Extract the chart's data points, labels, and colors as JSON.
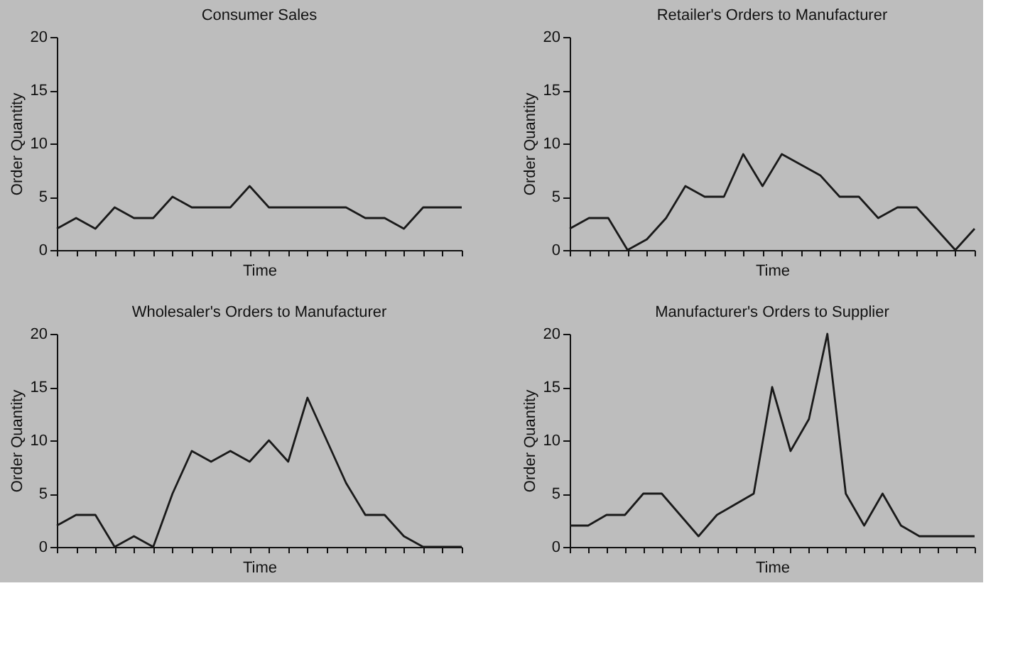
{
  "chart_data": [
    {
      "type": "line",
      "title": "Consumer Sales",
      "xlabel": "Time",
      "ylabel": "Order Quantity",
      "categories": [
        null,
        null,
        null,
        null,
        null,
        null,
        null,
        null,
        null,
        null,
        null,
        null,
        null,
        null,
        null,
        null,
        null,
        null,
        null,
        null,
        null,
        null
      ],
      "series": [
        {
          "color": "#1a1a1a",
          "values": [
            2,
            3,
            2,
            4,
            3,
            3,
            5,
            4,
            4,
            4,
            6,
            4,
            4,
            4,
            4,
            4,
            3,
            3,
            2,
            4,
            4,
            4
          ]
        }
      ],
      "ylim": [
        0,
        20
      ],
      "yticks": [
        0,
        5,
        10,
        15,
        20
      ],
      "grid": false,
      "marker": "none",
      "line_style": "solid",
      "tick_labels": "y"
    },
    {
      "type": "line",
      "title": "Retailer's Orders to Manufacturer",
      "xlabel": "Time",
      "ylabel": "Order Quantity",
      "categories": [
        null,
        null,
        null,
        null,
        null,
        null,
        null,
        null,
        null,
        null,
        null,
        null,
        null,
        null,
        null,
        null,
        null,
        null,
        null,
        null,
        null,
        null
      ],
      "series": [
        {
          "color": "#1a1a1a",
          "values": [
            2,
            3,
            3,
            0,
            1,
            3,
            6,
            5,
            5,
            9,
            6,
            9,
            8,
            7,
            5,
            5,
            3,
            4,
            4,
            2,
            0,
            2
          ]
        }
      ],
      "ylim": [
        0,
        20
      ],
      "yticks": [
        0,
        5,
        10,
        15,
        20
      ],
      "grid": false,
      "marker": "none",
      "line_style": "solid",
      "tick_labels": "y"
    },
    {
      "type": "line",
      "title": "Wholesaler's Orders to Manufacturer",
      "xlabel": "Time",
      "ylabel": "Order Quantity",
      "categories": [
        null,
        null,
        null,
        null,
        null,
        null,
        null,
        null,
        null,
        null,
        null,
        null,
        null,
        null,
        null,
        null,
        null,
        null,
        null,
        null,
        null,
        null
      ],
      "series": [
        {
          "color": "#1a1a1a",
          "values": [
            2,
            3,
            3,
            0,
            1,
            0,
            5,
            9,
            8,
            9,
            8,
            10,
            8,
            14,
            10,
            6,
            3,
            3,
            1,
            0,
            0,
            0
          ]
        }
      ],
      "ylim": [
        0,
        20
      ],
      "yticks": [
        0,
        5,
        10,
        15,
        20
      ],
      "grid": false,
      "marker": "none",
      "line_style": "solid",
      "tick_labels": "y"
    },
    {
      "type": "line",
      "title": "Manufacturer's Orders to Supplier",
      "xlabel": "Time",
      "ylabel": "Order Quantity",
      "categories": [
        null,
        null,
        null,
        null,
        null,
        null,
        null,
        null,
        null,
        null,
        null,
        null,
        null,
        null,
        null,
        null,
        null,
        null,
        null,
        null,
        null,
        null,
        null
      ],
      "series": [
        {
          "color": "#1a1a1a",
          "values": [
            2,
            2,
            3,
            3,
            5,
            5,
            3,
            1,
            3,
            4,
            5,
            15,
            9,
            12,
            20,
            5,
            2,
            5,
            2,
            1,
            1,
            1,
            1
          ]
        }
      ],
      "ylim": [
        0,
        20
      ],
      "yticks": [
        0,
        5,
        10,
        15,
        20
      ],
      "grid": false,
      "marker": "none",
      "line_style": "solid",
      "tick_labels": "y"
    }
  ]
}
